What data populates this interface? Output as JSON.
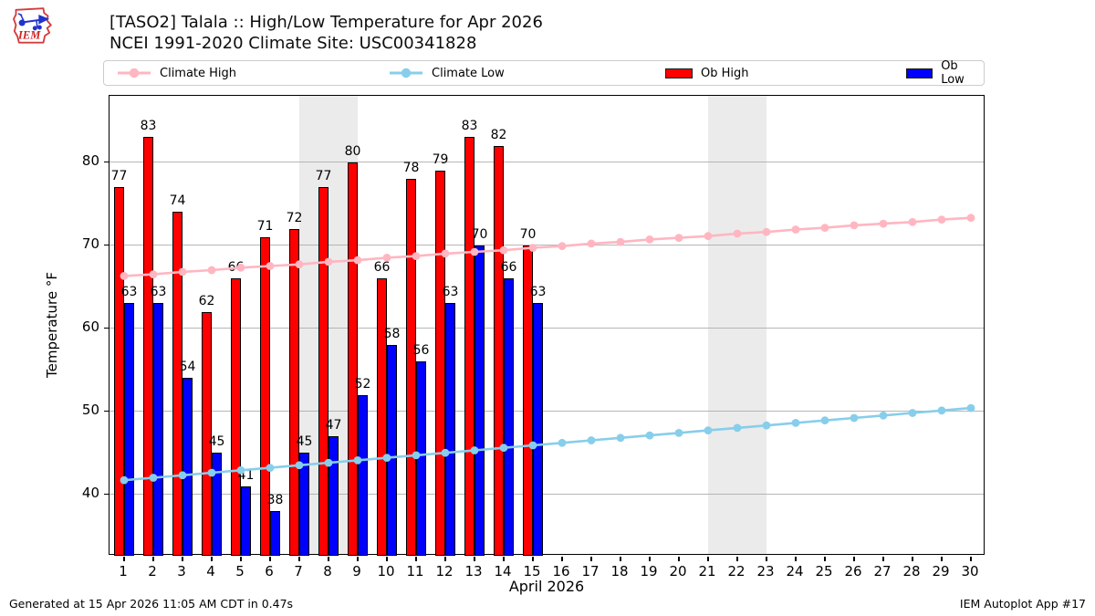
{
  "header": {
    "title_line1": "[TASO2] Talala :: High/Low Temperature for Apr 2026",
    "title_line2": "NCEI 1991-2020 Climate Site: USC00341828",
    "logo_text": "IEM"
  },
  "legend": {
    "items": [
      {
        "label": "Climate High",
        "type": "line",
        "color": "#ffb6c1"
      },
      {
        "label": "Climate Low",
        "type": "line",
        "color": "#87ceeb"
      },
      {
        "label": "Ob High",
        "type": "patch",
        "color": "#ff0000"
      },
      {
        "label": "Ob Low",
        "type": "patch",
        "color": "#0000ff"
      }
    ]
  },
  "footer": {
    "left": "Generated at 15 Apr 2026 11:05 AM CDT in 0.47s",
    "right": "IEM Autoplot App #17"
  },
  "chart_data": {
    "type": "bar",
    "title": "[TASO2] Talala :: High/Low Temperature for Apr 2026",
    "subtitle": "NCEI 1991-2020 Climate Site: USC00341828",
    "xlabel": "April 2026",
    "ylabel": "Temperature °F",
    "x": [
      1,
      2,
      3,
      4,
      5,
      6,
      7,
      8,
      9,
      10,
      11,
      12,
      13,
      14,
      15,
      16,
      17,
      18,
      19,
      20,
      21,
      22,
      23,
      24,
      25,
      26,
      27,
      28,
      29,
      30
    ],
    "ylim": [
      32.6,
      88
    ],
    "yticks": [
      40,
      50,
      60,
      70,
      80
    ],
    "grid": true,
    "legend_position": "top",
    "weekend_bands": [
      [
        3.5,
        5.5
      ],
      [
        10.5,
        12.5
      ],
      [
        17.5,
        19.5
      ],
      [
        24.5,
        26.5
      ]
    ],
    "series": [
      {
        "name": "Ob High",
        "type": "bar",
        "color": "#ff0000",
        "values": [
          77,
          83,
          74,
          62,
          66,
          71,
          72,
          77,
          80,
          66,
          78,
          79,
          83,
          82,
          70
        ]
      },
      {
        "name": "Ob Low",
        "type": "bar",
        "color": "#0000ff",
        "values": [
          63,
          63,
          54,
          45,
          41,
          38,
          45,
          47,
          52,
          58,
          56,
          63,
          70,
          66,
          63
        ]
      },
      {
        "name": "Climate High",
        "type": "line",
        "color": "#ffb6c1",
        "values": [
          66.3,
          66.5,
          66.8,
          67.0,
          67.3,
          67.5,
          67.7,
          68.0,
          68.2,
          68.5,
          68.7,
          69.0,
          69.2,
          69.4,
          69.7,
          69.9,
          70.2,
          70.4,
          70.7,
          70.9,
          71.1,
          71.4,
          71.6,
          71.9,
          72.1,
          72.4,
          72.6,
          72.8,
          73.1,
          73.3
        ]
      },
      {
        "name": "Climate Low",
        "type": "line",
        "color": "#87ceeb",
        "values": [
          41.7,
          42.0,
          42.3,
          42.6,
          42.9,
          43.2,
          43.5,
          43.8,
          44.1,
          44.4,
          44.7,
          45.0,
          45.3,
          45.6,
          45.9,
          46.2,
          46.5,
          46.8,
          47.1,
          47.4,
          47.7,
          48.0,
          48.3,
          48.6,
          48.9,
          49.2,
          49.5,
          49.8,
          50.1,
          50.4
        ]
      }
    ]
  }
}
